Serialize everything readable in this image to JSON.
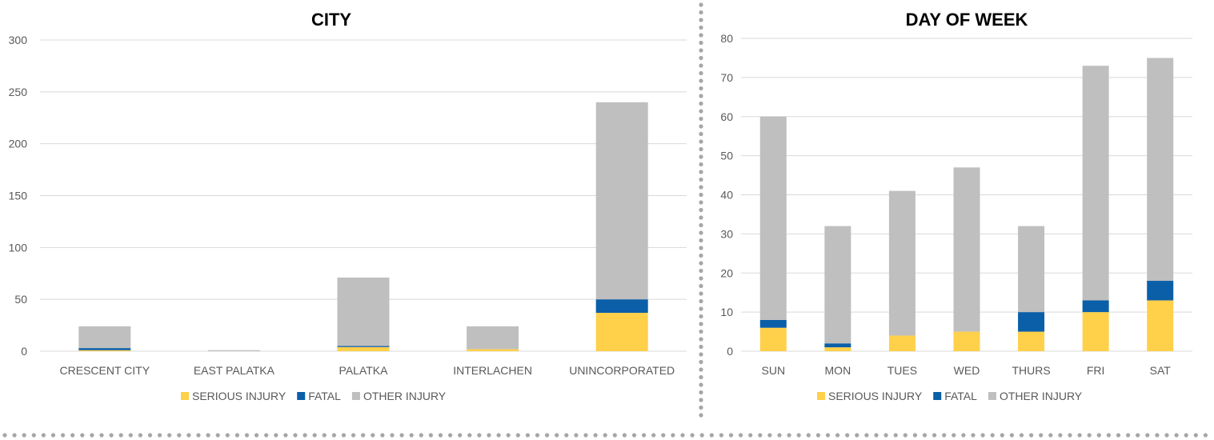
{
  "colors": {
    "serious_injury": "#FFD04A",
    "fatal": "#0A5FA8",
    "other_injury": "#BFBFBF",
    "separator": "#A6A6A6"
  },
  "legend": [
    "SERIOUS INJURY",
    "FATAL",
    "OTHER INJURY"
  ],
  "chart_data": [
    {
      "type": "bar",
      "stacked": true,
      "title": "CITY",
      "categories": [
        "CRESCENT CITY",
        "EAST PALATKA",
        "PALATKA",
        "INTERLACHEN",
        "UNINCORPORATED"
      ],
      "series": [
        {
          "name": "SERIOUS INJURY",
          "values": [
            1,
            0,
            4,
            2,
            37
          ]
        },
        {
          "name": "FATAL",
          "values": [
            2,
            0,
            1,
            0,
            13
          ]
        },
        {
          "name": "OTHER INJURY",
          "values": [
            21,
            1,
            66,
            22,
            190
          ]
        }
      ],
      "ylim": [
        0,
        300
      ],
      "yticks": [
        0,
        50,
        100,
        150,
        200,
        250,
        300
      ],
      "grid": true,
      "legend_position": "bottom"
    },
    {
      "type": "bar",
      "stacked": true,
      "title": "DAY OF WEEK",
      "categories": [
        "SUN",
        "MON",
        "TUES",
        "WED",
        "THURS",
        "FRI",
        "SAT"
      ],
      "series": [
        {
          "name": "SERIOUS INJURY",
          "values": [
            6,
            1,
            4,
            5,
            5,
            10,
            13
          ]
        },
        {
          "name": "FATAL",
          "values": [
            2,
            1,
            0,
            0,
            5,
            3,
            5
          ]
        },
        {
          "name": "OTHER INJURY",
          "values": [
            52,
            30,
            37,
            42,
            22,
            60,
            57
          ]
        }
      ],
      "ylim": [
        0,
        80
      ],
      "yticks": [
        0,
        10,
        20,
        30,
        40,
        50,
        60,
        70,
        80
      ],
      "grid": true,
      "legend_position": "bottom"
    }
  ]
}
